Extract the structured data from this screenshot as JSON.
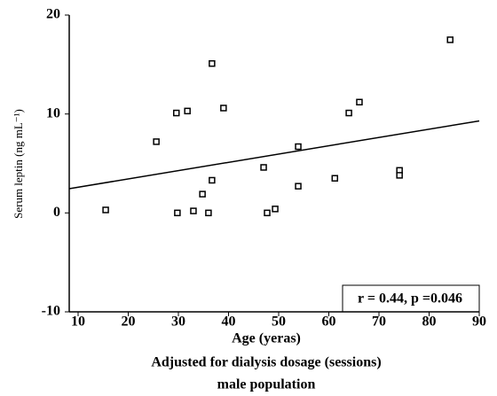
{
  "chart_data": {
    "type": "scatter",
    "x_label": "Age (yeras)",
    "subtitle": "Adjusted for dialysis dosage (sessions)",
    "subtitle2": "male population",
    "y_label": "Serum leptin (ng mL⁻¹)",
    "annotation": "r = 0.44, p =0.046",
    "x": [
      15.5,
      25.6,
      29.6,
      31.8,
      29.8,
      33.0,
      34.8,
      36.7,
      36.7,
      39.0,
      36.0,
      47.0,
      47.7,
      49.3,
      53.9,
      53.9,
      61.2,
      64.0,
      66.1,
      74.1,
      74.1,
      84.2
    ],
    "values": [
      0.3,
      7.2,
      10.1,
      10.3,
      0,
      0.2,
      1.9,
      15.1,
      3.3,
      10.6,
      0,
      4.6,
      0,
      0.4,
      6.7,
      2.7,
      3.5,
      10.1,
      11.2,
      4.3,
      3.8,
      17.5
    ],
    "color": "#000000",
    "trend_line": {
      "x": [
        10,
        90
      ],
      "y": [
        2.6,
        9.3
      ]
    },
    "xlim": [
      10,
      90
    ],
    "xticks": [
      10,
      20,
      30,
      40,
      50,
      60,
      70,
      80,
      90
    ],
    "ylim": [
      -10,
      20
    ],
    "yticks": [
      -10,
      0,
      10,
      20
    ]
  }
}
